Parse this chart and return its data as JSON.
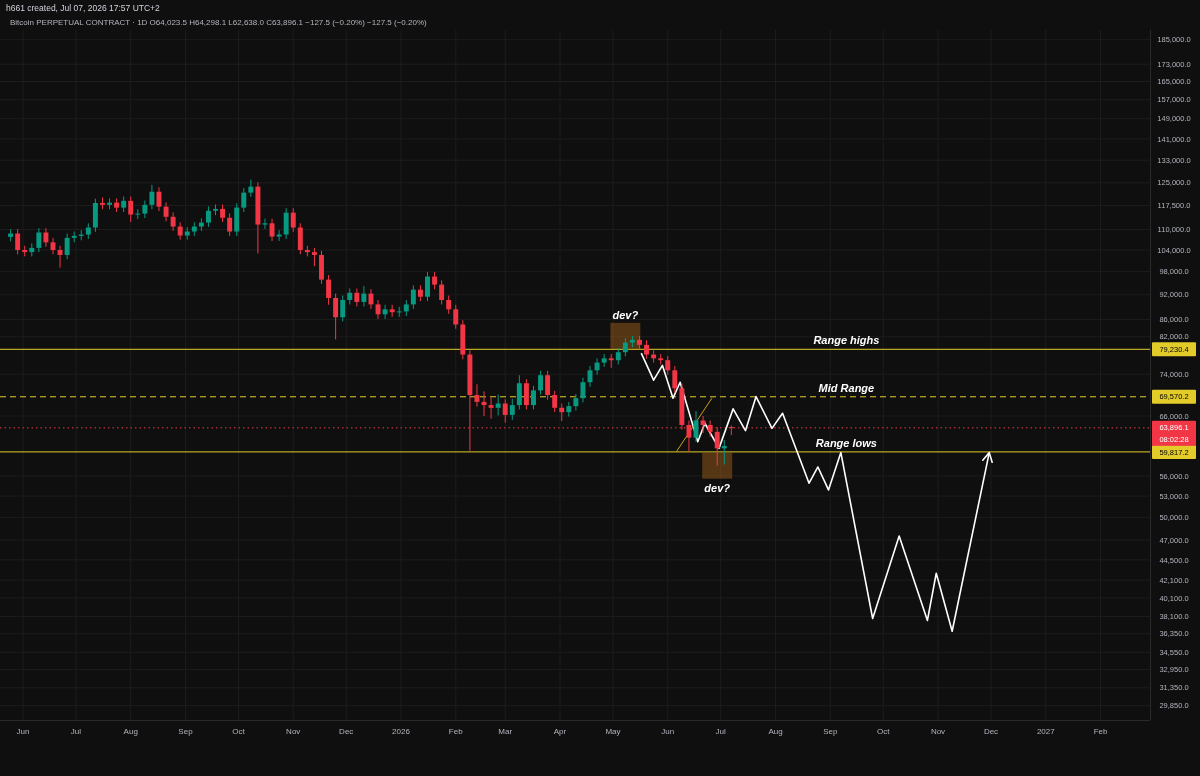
{
  "chart_data": {
    "type": "candlestick",
    "title": "h661 created, Jul 07, 2026 17:57 UTC+2",
    "subtitle": "Bitcoin PERPETUAL CONTRACT · 1D   O64,023.5 H64,298.1 L62,638.0 C63,896.1 −127.5 (−0.20%) −127.5 (−0.20%)",
    "x": [
      "2025-05-25",
      "2025-05-29",
      "2025-06-02",
      "2025-06-06",
      "2025-06-10",
      "2025-06-14",
      "2025-06-18",
      "2025-06-22",
      "2025-06-26",
      "2025-06-30",
      "2025-07-04",
      "2025-07-08",
      "2025-07-12",
      "2025-07-16",
      "2025-07-20",
      "2025-07-24",
      "2025-07-28",
      "2025-08-01",
      "2025-08-05",
      "2025-08-09",
      "2025-08-13",
      "2025-08-17",
      "2025-08-21",
      "2025-08-25",
      "2025-08-29",
      "2025-09-02",
      "2025-09-06",
      "2025-09-10",
      "2025-09-14",
      "2025-09-18",
      "2025-09-22",
      "2025-09-26",
      "2025-09-30",
      "2025-10-04",
      "2025-10-08",
      "2025-10-12",
      "2025-10-16",
      "2025-10-20",
      "2025-10-24",
      "2025-10-28",
      "2025-11-01",
      "2025-11-05",
      "2025-11-09",
      "2025-11-13",
      "2025-11-17",
      "2025-11-21",
      "2025-11-25",
      "2025-11-29",
      "2025-12-03",
      "2025-12-07",
      "2025-12-11",
      "2025-12-15",
      "2025-12-19",
      "2025-12-23",
      "2025-12-27",
      "2025-12-31",
      "2026-01-04",
      "2026-01-08",
      "2026-01-12",
      "2026-01-16",
      "2026-01-20",
      "2026-01-24",
      "2026-01-28",
      "2026-02-01",
      "2026-02-05",
      "2026-02-09",
      "2026-02-13",
      "2026-02-17",
      "2026-02-21",
      "2026-02-25",
      "2026-03-01",
      "2026-03-05",
      "2026-03-09",
      "2026-03-13",
      "2026-03-17",
      "2026-03-21",
      "2026-03-25",
      "2026-03-29",
      "2026-04-02",
      "2026-04-06",
      "2026-04-10",
      "2026-04-14",
      "2026-04-18",
      "2026-04-22",
      "2026-04-26",
      "2026-04-30",
      "2026-05-04",
      "2026-05-08",
      "2026-05-12",
      "2026-05-16",
      "2026-05-20",
      "2026-05-24",
      "2026-05-28",
      "2026-06-01",
      "2026-06-05",
      "2026-06-09",
      "2026-06-13",
      "2026-06-17",
      "2026-06-21",
      "2026-06-25",
      "2026-06-29",
      "2026-07-03",
      "2026-07-07"
    ],
    "ohlc": [
      [
        107800,
        110100,
        106500,
        108800
      ],
      [
        108800,
        110100,
        102800,
        104000
      ],
      [
        104000,
        105200,
        102200,
        103400
      ],
      [
        103400,
        105900,
        102200,
        104600
      ],
      [
        104600,
        110400,
        103400,
        109100
      ],
      [
        109100,
        110400,
        104900,
        106200
      ],
      [
        106200,
        107500,
        102800,
        104000
      ],
      [
        104000,
        105200,
        99100,
        102600
      ],
      [
        102600,
        108800,
        101400,
        107500
      ],
      [
        107500,
        109400,
        106200,
        108100
      ],
      [
        108100,
        109800,
        106800,
        108500
      ],
      [
        108500,
        111900,
        107200,
        110600
      ],
      [
        110600,
        119700,
        109300,
        118300
      ],
      [
        118300,
        120100,
        116300,
        117700
      ],
      [
        117700,
        119800,
        116300,
        118400
      ],
      [
        118400,
        119800,
        115400,
        116800
      ],
      [
        116800,
        120400,
        115400,
        119000
      ],
      [
        119000,
        120400,
        112300,
        114600
      ],
      [
        114600,
        116300,
        113200,
        114900
      ],
      [
        114900,
        119100,
        113500,
        117700
      ],
      [
        117700,
        124300,
        116300,
        122000
      ],
      [
        122000,
        123500,
        115700,
        117100
      ],
      [
        117100,
        118500,
        112500,
        113900
      ],
      [
        113900,
        115300,
        109600,
        110900
      ],
      [
        110900,
        112200,
        107000,
        108200
      ],
      [
        108200,
        110700,
        107000,
        109400
      ],
      [
        109400,
        112200,
        108100,
        110900
      ],
      [
        110900,
        113400,
        109600,
        112100
      ],
      [
        112100,
        117200,
        110800,
        115800
      ],
      [
        115800,
        117800,
        114400,
        116400
      ],
      [
        116400,
        117800,
        112300,
        113600
      ],
      [
        113600,
        115000,
        108100,
        109400
      ],
      [
        109400,
        118200,
        108100,
        116800
      ],
      [
        116800,
        123200,
        115400,
        121700
      ],
      [
        121700,
        126100,
        120300,
        123700
      ],
      [
        123700,
        125200,
        103000,
        111500
      ],
      [
        111500,
        113300,
        110200,
        111900
      ],
      [
        111900,
        113300,
        106600,
        107900
      ],
      [
        107900,
        109800,
        106600,
        108500
      ],
      [
        108500,
        116600,
        107200,
        115200
      ],
      [
        115200,
        116600,
        109300,
        110600
      ],
      [
        110600,
        111900,
        102800,
        104000
      ],
      [
        104000,
        105200,
        102200,
        103400
      ],
      [
        103400,
        104600,
        99500,
        102600
      ],
      [
        102600,
        103800,
        94800,
        95900
      ],
      [
        95900,
        97100,
        89500,
        91200
      ],
      [
        91200,
        92300,
        81400,
        86500
      ],
      [
        86500,
        91800,
        85500,
        90700
      ],
      [
        90700,
        93600,
        89600,
        92500
      ],
      [
        92500,
        93600,
        89100,
        90200
      ],
      [
        90200,
        94200,
        89100,
        92300
      ],
      [
        92300,
        93400,
        88500,
        89600
      ],
      [
        89600,
        90700,
        86100,
        87200
      ],
      [
        87200,
        89500,
        86100,
        88400
      ],
      [
        88400,
        89500,
        86600,
        87700
      ],
      [
        87700,
        89000,
        86600,
        87900
      ],
      [
        87900,
        90700,
        86800,
        89600
      ],
      [
        89600,
        94400,
        88500,
        93300
      ],
      [
        93300,
        94400,
        90400,
        91500
      ],
      [
        91500,
        97900,
        90400,
        96700
      ],
      [
        96700,
        97900,
        93400,
        94600
      ],
      [
        94600,
        95700,
        89600,
        90700
      ],
      [
        90700,
        91800,
        87300,
        88400
      ],
      [
        88400,
        89500,
        83800,
        84800
      ],
      [
        84800,
        85800,
        77100,
        78100
      ],
      [
        78100,
        79000,
        60000,
        69900
      ],
      [
        69900,
        72000,
        67700,
        68600
      ],
      [
        68600,
        70600,
        66000,
        68000
      ],
      [
        68000,
        69400,
        65500,
        67500
      ],
      [
        67500,
        70000,
        66100,
        68300
      ],
      [
        68300,
        69100,
        64800,
        66200
      ],
      [
        66200,
        69200,
        65300,
        68000
      ],
      [
        68000,
        73800,
        67200,
        72200
      ],
      [
        72200,
        73000,
        67200,
        68000
      ],
      [
        68000,
        71700,
        67200,
        70800
      ],
      [
        70800,
        74700,
        70000,
        73800
      ],
      [
        73800,
        74700,
        69000,
        69900
      ],
      [
        69900,
        70700,
        66700,
        67500
      ],
      [
        67500,
        68300,
        65100,
        66700
      ],
      [
        66700,
        68600,
        65900,
        67800
      ],
      [
        67800,
        70100,
        67000,
        69300
      ],
      [
        69300,
        73300,
        68500,
        72400
      ],
      [
        72400,
        75700,
        71500,
        74800
      ],
      [
        74800,
        77300,
        73900,
        76400
      ],
      [
        76400,
        78200,
        75500,
        77300
      ],
      [
        77300,
        78200,
        75300,
        76900
      ],
      [
        76900,
        79500,
        76000,
        78600
      ],
      [
        78600,
        81700,
        77700,
        80700
      ],
      [
        80700,
        82200,
        79700,
        81300
      ],
      [
        81300,
        82200,
        79200,
        80200
      ],
      [
        80200,
        81200,
        77200,
        78100
      ],
      [
        78100,
        79000,
        76400,
        77300
      ],
      [
        77300,
        78200,
        76000,
        76900
      ],
      [
        76900,
        77800,
        73900,
        74800
      ],
      [
        74800,
        75700,
        70300,
        71200
      ],
      [
        71200,
        72100,
        63600,
        64400
      ],
      [
        64400,
        65200,
        59900,
        62200
      ],
      [
        62200,
        66900,
        61500,
        65200
      ],
      [
        65200,
        66000,
        63000,
        64400
      ],
      [
        64400,
        65200,
        62400,
        63200
      ],
      [
        63200,
        64000,
        57600,
        60400
      ],
      [
        60400,
        61800,
        57800,
        60800
      ],
      [
        64023.5,
        64298.1,
        62638.0,
        63896.1
      ]
    ],
    "series": [
      {
        "type": "line",
        "color": "#ffffff",
        "x": [
          "2026-05-17",
          "2026-05-24",
          "2026-05-29",
          "2026-06-04",
          "2026-06-08",
          "2026-06-18",
          "2026-06-22",
          "2026-06-30",
          "2026-07-08",
          "2026-07-15",
          "2026-07-21",
          "2026-07-30",
          "2026-08-05",
          "2026-08-20",
          "2026-08-25",
          "2026-08-31",
          "2026-09-07",
          "2026-09-25",
          "2026-10-10",
          "2026-10-26",
          "2026-10-31",
          "2026-11-09",
          "2026-11-30"
        ],
        "values": [
          78400,
          72800,
          75800,
          69300,
          72400,
          61500,
          64700,
          60400,
          67300,
          63400,
          69600,
          63800,
          66500,
          54900,
          57400,
          53900,
          59700,
          37900,
          47500,
          37700,
          42900,
          36600,
          59700
        ]
      },
      {
        "type": "line",
        "color": "#c9a21c",
        "x": [
          "2026-06-06",
          "2026-06-26"
        ],
        "values": [
          59900,
          69300
        ]
      }
    ],
    "log": true,
    "ylim": [
      28700,
      190000
    ],
    "yticks": [
      {
        "value": 185000,
        "label": "185,000.0"
      },
      {
        "value": 173000,
        "label": "173,000.0"
      },
      {
        "value": 165000,
        "label": "165,000.0"
      },
      {
        "value": 157000,
        "label": "157,000.0"
      },
      {
        "value": 149000,
        "label": "149,000.0"
      },
      {
        "value": 141000,
        "label": "141,000.0"
      },
      {
        "value": 133000,
        "label": "133,000.0"
      },
      {
        "value": 125000,
        "label": "125,000.0"
      },
      {
        "value": 117500,
        "label": "117,500.0"
      },
      {
        "value": 110000,
        "label": "110,000.0"
      },
      {
        "value": 104000,
        "label": "104,000.0"
      },
      {
        "value": 98000,
        "label": "98,000.0"
      },
      {
        "value": 92000,
        "label": "92,000.0"
      },
      {
        "value": 86000,
        "label": "86,000.0"
      },
      {
        "value": 82000,
        "label": "82,000.0"
      },
      {
        "value": 74000,
        "label": "74,000.0"
      },
      {
        "value": 66000,
        "label": "66,000.0"
      },
      {
        "value": 56000,
        "label": "56,000.0"
      },
      {
        "value": 53000,
        "label": "53,000.0"
      },
      {
        "value": 50000,
        "label": "50,000.0"
      },
      {
        "value": 47000,
        "label": "47,000.0"
      },
      {
        "value": 44500,
        "label": "44,500.0"
      },
      {
        "value": 42100,
        "label": "42,100.0"
      },
      {
        "value": 40100,
        "label": "40,100.0"
      },
      {
        "value": 38100,
        "label": "38,100.0"
      },
      {
        "value": 36350,
        "label": "36,350.0"
      },
      {
        "value": 34550,
        "label": "34,550.0"
      },
      {
        "value": 32950,
        "label": "32,950.0"
      },
      {
        "value": 31350,
        "label": "31,350.0"
      },
      {
        "value": 29850,
        "label": "29,850.0"
      }
    ],
    "xlim": [
      "2025-05-19",
      "2027-03-01"
    ],
    "xticks": [
      {
        "value": "2025-06-01",
        "label": "Jun"
      },
      {
        "value": "2025-07-01",
        "label": "Jul"
      },
      {
        "value": "2025-08-01",
        "label": "Aug"
      },
      {
        "value": "2025-09-01",
        "label": "Sep"
      },
      {
        "value": "2025-10-01",
        "label": "Oct"
      },
      {
        "value": "2025-11-01",
        "label": "Nov"
      },
      {
        "value": "2025-12-01",
        "label": "Dec"
      },
      {
        "value": "2026-01-01",
        "label": "2026"
      },
      {
        "value": "2026-02-01",
        "label": "Feb"
      },
      {
        "value": "2026-03-01",
        "label": "Mar"
      },
      {
        "value": "2026-04-01",
        "label": "Apr"
      },
      {
        "value": "2026-05-01",
        "label": "May"
      },
      {
        "value": "2026-06-01",
        "label": "Jun"
      },
      {
        "value": "2026-07-01",
        "label": "Jul"
      },
      {
        "value": "2026-08-01",
        "label": "Aug"
      },
      {
        "value": "2026-09-01",
        "label": "Sep"
      },
      {
        "value": "2026-10-01",
        "label": "Oct"
      },
      {
        "value": "2026-11-01",
        "label": "Nov"
      },
      {
        "value": "2026-12-01",
        "label": "Dec"
      },
      {
        "value": "2027-01-01",
        "label": "2027"
      },
      {
        "value": "2027-02-01",
        "label": "Feb"
      }
    ],
    "ref_lines": [
      {
        "axis": "y",
        "value": 79230.4,
        "label": "Range highs",
        "color": "#e3cc2a",
        "line_style": "solid"
      },
      {
        "axis": "y",
        "value": 69570.2,
        "label": "Mid Range",
        "color": "#e3cc2a",
        "line_style": "dashed"
      },
      {
        "axis": "y",
        "value": 63896.1,
        "color": "#f23645",
        "line_style": "dotted"
      },
      {
        "axis": "y",
        "value": 59817.2,
        "label": "Range lows",
        "color": "#e3cc2a",
        "line_style": "solid"
      }
    ],
    "annotations": [
      {
        "text": "dev?",
        "x": "2026-05-08",
        "y": 82200
      },
      {
        "text": "dev?",
        "x": "2026-06-29",
        "y": 57600
      },
      {
        "text": "79,230.4",
        "y": 79230.4
      },
      {
        "text": "69,570.2",
        "y": 69570.2
      },
      {
        "text": "63,896.1",
        "y": 63896.1
      },
      "08:02:28",
      {
        "text": "59,817.2",
        "y": 59817.2
      }
    ],
    "grid": true
  }
}
